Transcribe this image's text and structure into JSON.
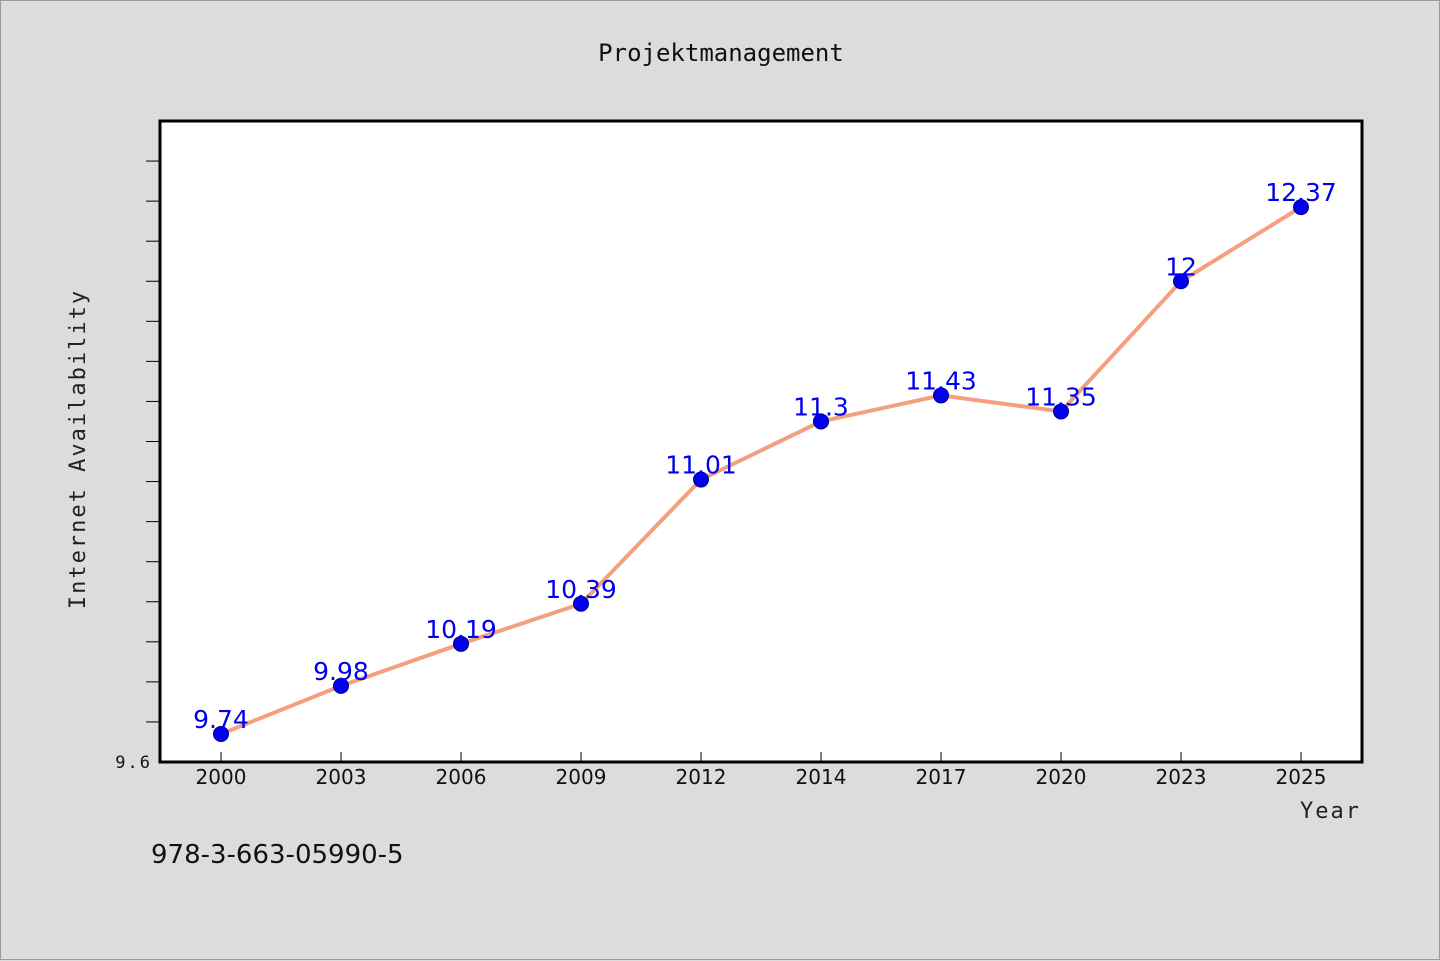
{
  "chart_data": {
    "type": "line",
    "title": "Projektmanagement",
    "xlabel": "Year",
    "ylabel": "Internet Availability",
    "categories": [
      "2000",
      "2003",
      "2006",
      "2009",
      "2012",
      "2014",
      "2017",
      "2020",
      "2023",
      "2025"
    ],
    "series": [
      {
        "values": [
          9.74,
          9.98,
          10.19,
          10.39,
          11.01,
          11.3,
          11.43,
          11.35,
          12,
          12.37
        ],
        "line_color": "#f4a07e",
        "marker_color": "#0000ee"
      }
    ],
    "data_labels": [
      "9.74",
      "9.98",
      "10.19",
      "10.39",
      "11.01",
      "11.3",
      "11.43",
      "11.35",
      "12",
      "12.37"
    ],
    "ylim": [
      9.6,
      12.8
    ],
    "yticks_labeled": [
      "9.6"
    ],
    "grid": false,
    "legend": "none"
  },
  "footer": {
    "isbn": "978-3-663-05990-5"
  },
  "colors": {
    "background": "#dcdcdc",
    "plot_background": "#ffffff",
    "line": "#f4a07e",
    "marker": "#0000ee",
    "data_label": "#0000ee"
  }
}
